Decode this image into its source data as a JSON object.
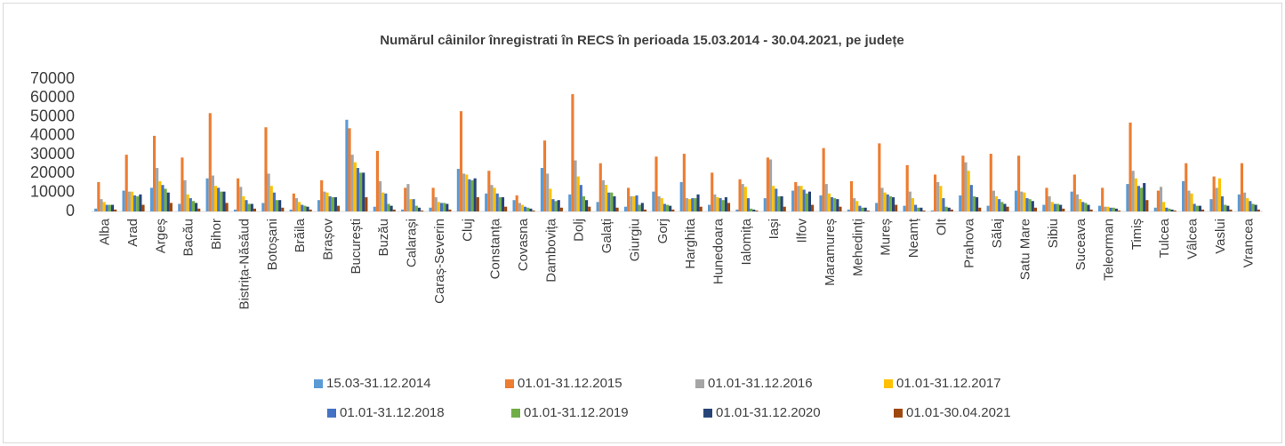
{
  "chart_data": {
    "type": "bar",
    "title": "Numărul câinilor înregistrati în RECS în perioada 15.03.2014 - 30.04.2021, pe județe",
    "categories": [
      "Alba",
      "Arad",
      "Argeș",
      "Bacău",
      "Bihor",
      "Bistrița-Năsăud",
      "Botoșani",
      "Brăila",
      "Brașov",
      "București",
      "Buzău",
      "Calarași",
      "Caraș-Severin",
      "Cluj",
      "Constanța",
      "Covasna",
      "Dambovița",
      "Dolj",
      "Galați",
      "Giurgiu",
      "Gorj",
      "Harghita",
      "Hunedoara",
      "Ialomița",
      "Iași",
      "Ilfov",
      "Maramureș",
      "Mehedinți",
      "Mureș",
      "Neamț",
      "Olt",
      "Prahova",
      "Sălaj",
      "Satu Mare",
      "Sibiu",
      "Suceava",
      "Teleorman",
      "Timiș",
      "Tulcea",
      "Vâlcea",
      "Vaslui",
      "Vrancea"
    ],
    "series": [
      {
        "name": "15.03-31.12.2014",
        "color": "#5b9bd5",
        "values": [
          1500,
          11000,
          12500,
          4000,
          17500,
          1000,
          4500,
          1000,
          6000,
          48500,
          2500,
          1000,
          2000,
          22500,
          9500,
          6000,
          23000,
          9000,
          5000,
          2500,
          10500,
          15500,
          3500,
          1000,
          7000,
          11000,
          8500,
          1000,
          4500,
          3000,
          500,
          8500,
          3000,
          11000,
          3500,
          10500,
          3000,
          14500,
          2000,
          16000,
          6500,
          9000
        ]
      },
      {
        "name": "01.01-31.12.2015",
        "color": "#ed7d31",
        "values": [
          15500,
          30000,
          40000,
          28500,
          52000,
          17500,
          44500,
          9500,
          16500,
          44000,
          32000,
          12500,
          12500,
          53000,
          21500,
          8500,
          37500,
          62000,
          25500,
          12500,
          29000,
          30500,
          20500,
          17000,
          28500,
          15500,
          33500,
          16000,
          36000,
          24500,
          19500,
          29500,
          30500,
          29500,
          12500,
          19500,
          12500,
          47000,
          11000,
          25500,
          18500,
          25500
        ]
      },
      {
        "name": "01.01-31.12.2016",
        "color": "#a5a5a5",
        "values": [
          6500,
          10500,
          23000,
          16500,
          19000,
          13000,
          20000,
          7000,
          10500,
          30000,
          16000,
          14500,
          7500,
          20000,
          14000,
          4500,
          20000,
          27000,
          16500,
          8000,
          8000,
          7000,
          9000,
          14500,
          27500,
          13500,
          14500,
          7000,
          12500,
          10500,
          15500,
          26000,
          11000,
          10500,
          8000,
          9000,
          2500,
          21500,
          13000,
          11000,
          12500,
          10000
        ]
      },
      {
        "name": "01.01-31.12.2017",
        "color": "#ffc000",
        "values": [
          5000,
          10500,
          16000,
          9000,
          13500,
          8000,
          13500,
          5000,
          10000,
          26000,
          10000,
          6500,
          5000,
          19500,
          12500,
          3500,
          12000,
          18500,
          14000,
          8000,
          7000,
          6500,
          7500,
          13000,
          13500,
          13500,
          9500,
          5500,
          10000,
          7000,
          13500,
          21500,
          8000,
          10000,
          5000,
          6500,
          2500,
          17500,
          5000,
          9500,
          17500,
          7000
        ]
      },
      {
        "name": "01.01-31.12.2018",
        "color": "#4472c4",
        "values": [
          3500,
          8500,
          14000,
          7000,
          12500,
          6000,
          10000,
          3500,
          8000,
          23000,
          9500,
          6500,
          4500,
          17000,
          9500,
          2500,
          6500,
          14000,
          10000,
          8500,
          4000,
          7000,
          7000,
          7000,
          12000,
          11500,
          7500,
          3000,
          9000,
          3500,
          7000,
          14000,
          6500,
          7000,
          4000,
          5000,
          2000,
          13500,
          2000,
          4000,
          8000,
          5500
        ]
      },
      {
        "name": "01.01-31.12.2019",
        "color": "#70ad47",
        "values": [
          3500,
          8000,
          12000,
          5500,
          10500,
          4000,
          6000,
          3000,
          7500,
          20500,
          4000,
          3000,
          4500,
          16500,
          7500,
          2000,
          5500,
          8000,
          10000,
          3500,
          3500,
          7000,
          6000,
          1500,
          8000,
          9500,
          7000,
          2000,
          8000,
          2000,
          2500,
          8000,
          5000,
          6500,
          4000,
          4500,
          2000,
          12500,
          1500,
          3000,
          3500,
          4000
        ]
      },
      {
        "name": "01.01-31.12.2020",
        "color": "#264478",
        "values": [
          3500,
          9000,
          10000,
          4500,
          10500,
          4000,
          6000,
          2500,
          7500,
          20500,
          3000,
          2000,
          4000,
          17500,
          7500,
          1500,
          6000,
          6000,
          8000,
          4500,
          3000,
          9000,
          7500,
          1000,
          8000,
          10500,
          6500,
          2000,
          7500,
          2000,
          2000,
          7500,
          4000,
          5500,
          3500,
          3500,
          1500,
          15000,
          1000,
          3000,
          3000,
          3500
        ]
      },
      {
        "name": "01.01-30.04.2021",
        "color": "#9e480e",
        "values": [
          1000,
          3500,
          4500,
          1500,
          4500,
          1500,
          2000,
          1000,
          3000,
          7500,
          1000,
          500,
          1000,
          7500,
          2500,
          500,
          2000,
          2500,
          2000,
          1000,
          1000,
          2500,
          4500,
          500,
          2500,
          3500,
          2500,
          500,
          3500,
          500,
          1000,
          2000,
          2500,
          2000,
          1500,
          1000,
          500,
          6000,
          500,
          1000,
          1000,
          1000
        ]
      }
    ],
    "ylim": [
      0,
      70000
    ],
    "yticks": [
      0,
      10000,
      20000,
      30000,
      40000,
      50000,
      60000,
      70000
    ],
    "grid": false,
    "legend": "bottom"
  }
}
